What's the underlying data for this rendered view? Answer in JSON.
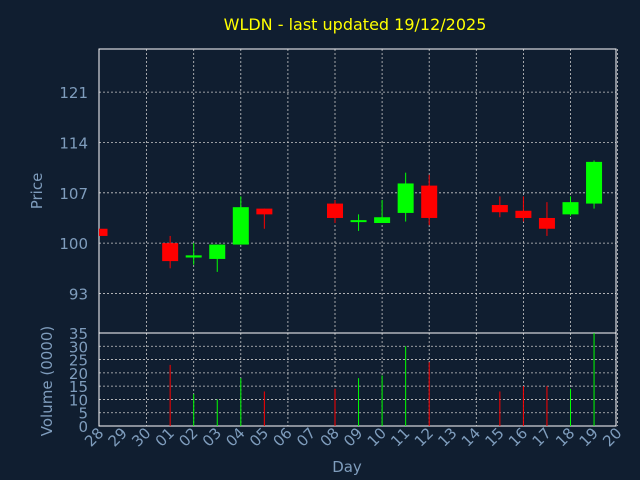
{
  "chart_data": {
    "type": "candlestick",
    "title": "WLDN - last updated 19/12/2025",
    "xlabel": "Day",
    "price_panel": {
      "ylabel": "Price",
      "yticks": [
        93,
        100,
        107,
        114,
        121
      ],
      "ylim": [
        87.5,
        127
      ]
    },
    "volume_panel": {
      "ylabel": "Volume (0000)",
      "yticks": [
        0,
        5,
        10,
        15,
        20,
        25,
        30,
        35
      ],
      "ylim": [
        0,
        35
      ]
    },
    "grid": true,
    "colors": {
      "up": "#00ff00",
      "down": "#ff0000",
      "background": "#101e30",
      "title": "#ffff00",
      "axis_text": "#7f9dbd"
    },
    "x_labels": [
      "28",
      "29",
      "30",
      "01",
      "02",
      "03",
      "04",
      "05",
      "06",
      "07",
      "08",
      "09",
      "10",
      "11",
      "12",
      "13",
      "14",
      "15",
      "16",
      "17",
      "18",
      "19",
      "20"
    ],
    "candles": [
      {
        "day": "28",
        "open": 102.0,
        "high": 102.0,
        "low": 101.0,
        "close": 101.0,
        "volume": null
      },
      {
        "day": "01",
        "open": 100.0,
        "high": 101.0,
        "low": 96.5,
        "close": 97.5,
        "volume": 23
      },
      {
        "day": "02",
        "open": 98.0,
        "high": 100.0,
        "low": 97.0,
        "close": 98.3,
        "volume": 12
      },
      {
        "day": "03",
        "open": 97.8,
        "high": 99.8,
        "low": 96.0,
        "close": 99.8,
        "volume": 10
      },
      {
        "day": "04",
        "open": 99.8,
        "high": 106.5,
        "low": 99.8,
        "close": 105.0,
        "volume": 18
      },
      {
        "day": "05",
        "open": 104.8,
        "high": 104.8,
        "low": 102.0,
        "close": 104.0,
        "volume": 13
      },
      {
        "day": "08",
        "open": 105.5,
        "high": 106.0,
        "low": 102.8,
        "close": 103.5,
        "volume": 14
      },
      {
        "day": "09",
        "open": 103.0,
        "high": 104.0,
        "low": 101.7,
        "close": 103.2,
        "volume": 18
      },
      {
        "day": "10",
        "open": 102.8,
        "high": 106.0,
        "low": 102.8,
        "close": 103.6,
        "volume": 19
      },
      {
        "day": "11",
        "open": 104.2,
        "high": 109.8,
        "low": 103.0,
        "close": 108.3,
        "volume": 30
      },
      {
        "day": "12",
        "open": 108.0,
        "high": 109.5,
        "low": 102.5,
        "close": 103.5,
        "volume": 24
      },
      {
        "day": "15",
        "open": 105.3,
        "high": 106.5,
        "low": 103.6,
        "close": 104.3,
        "volume": 13
      },
      {
        "day": "16",
        "open": 104.5,
        "high": 106.5,
        "low": 103.0,
        "close": 103.5,
        "volume": 15
      },
      {
        "day": "17",
        "open": 103.5,
        "high": 105.7,
        "low": 101.0,
        "close": 102.0,
        "volume": 15
      },
      {
        "day": "18",
        "open": 104.0,
        "high": 106.5,
        "low": 103.8,
        "close": 105.7,
        "volume": 14
      },
      {
        "day": "19",
        "open": 105.5,
        "high": 111.5,
        "low": 104.8,
        "close": 111.3,
        "volume": 35
      }
    ]
  }
}
